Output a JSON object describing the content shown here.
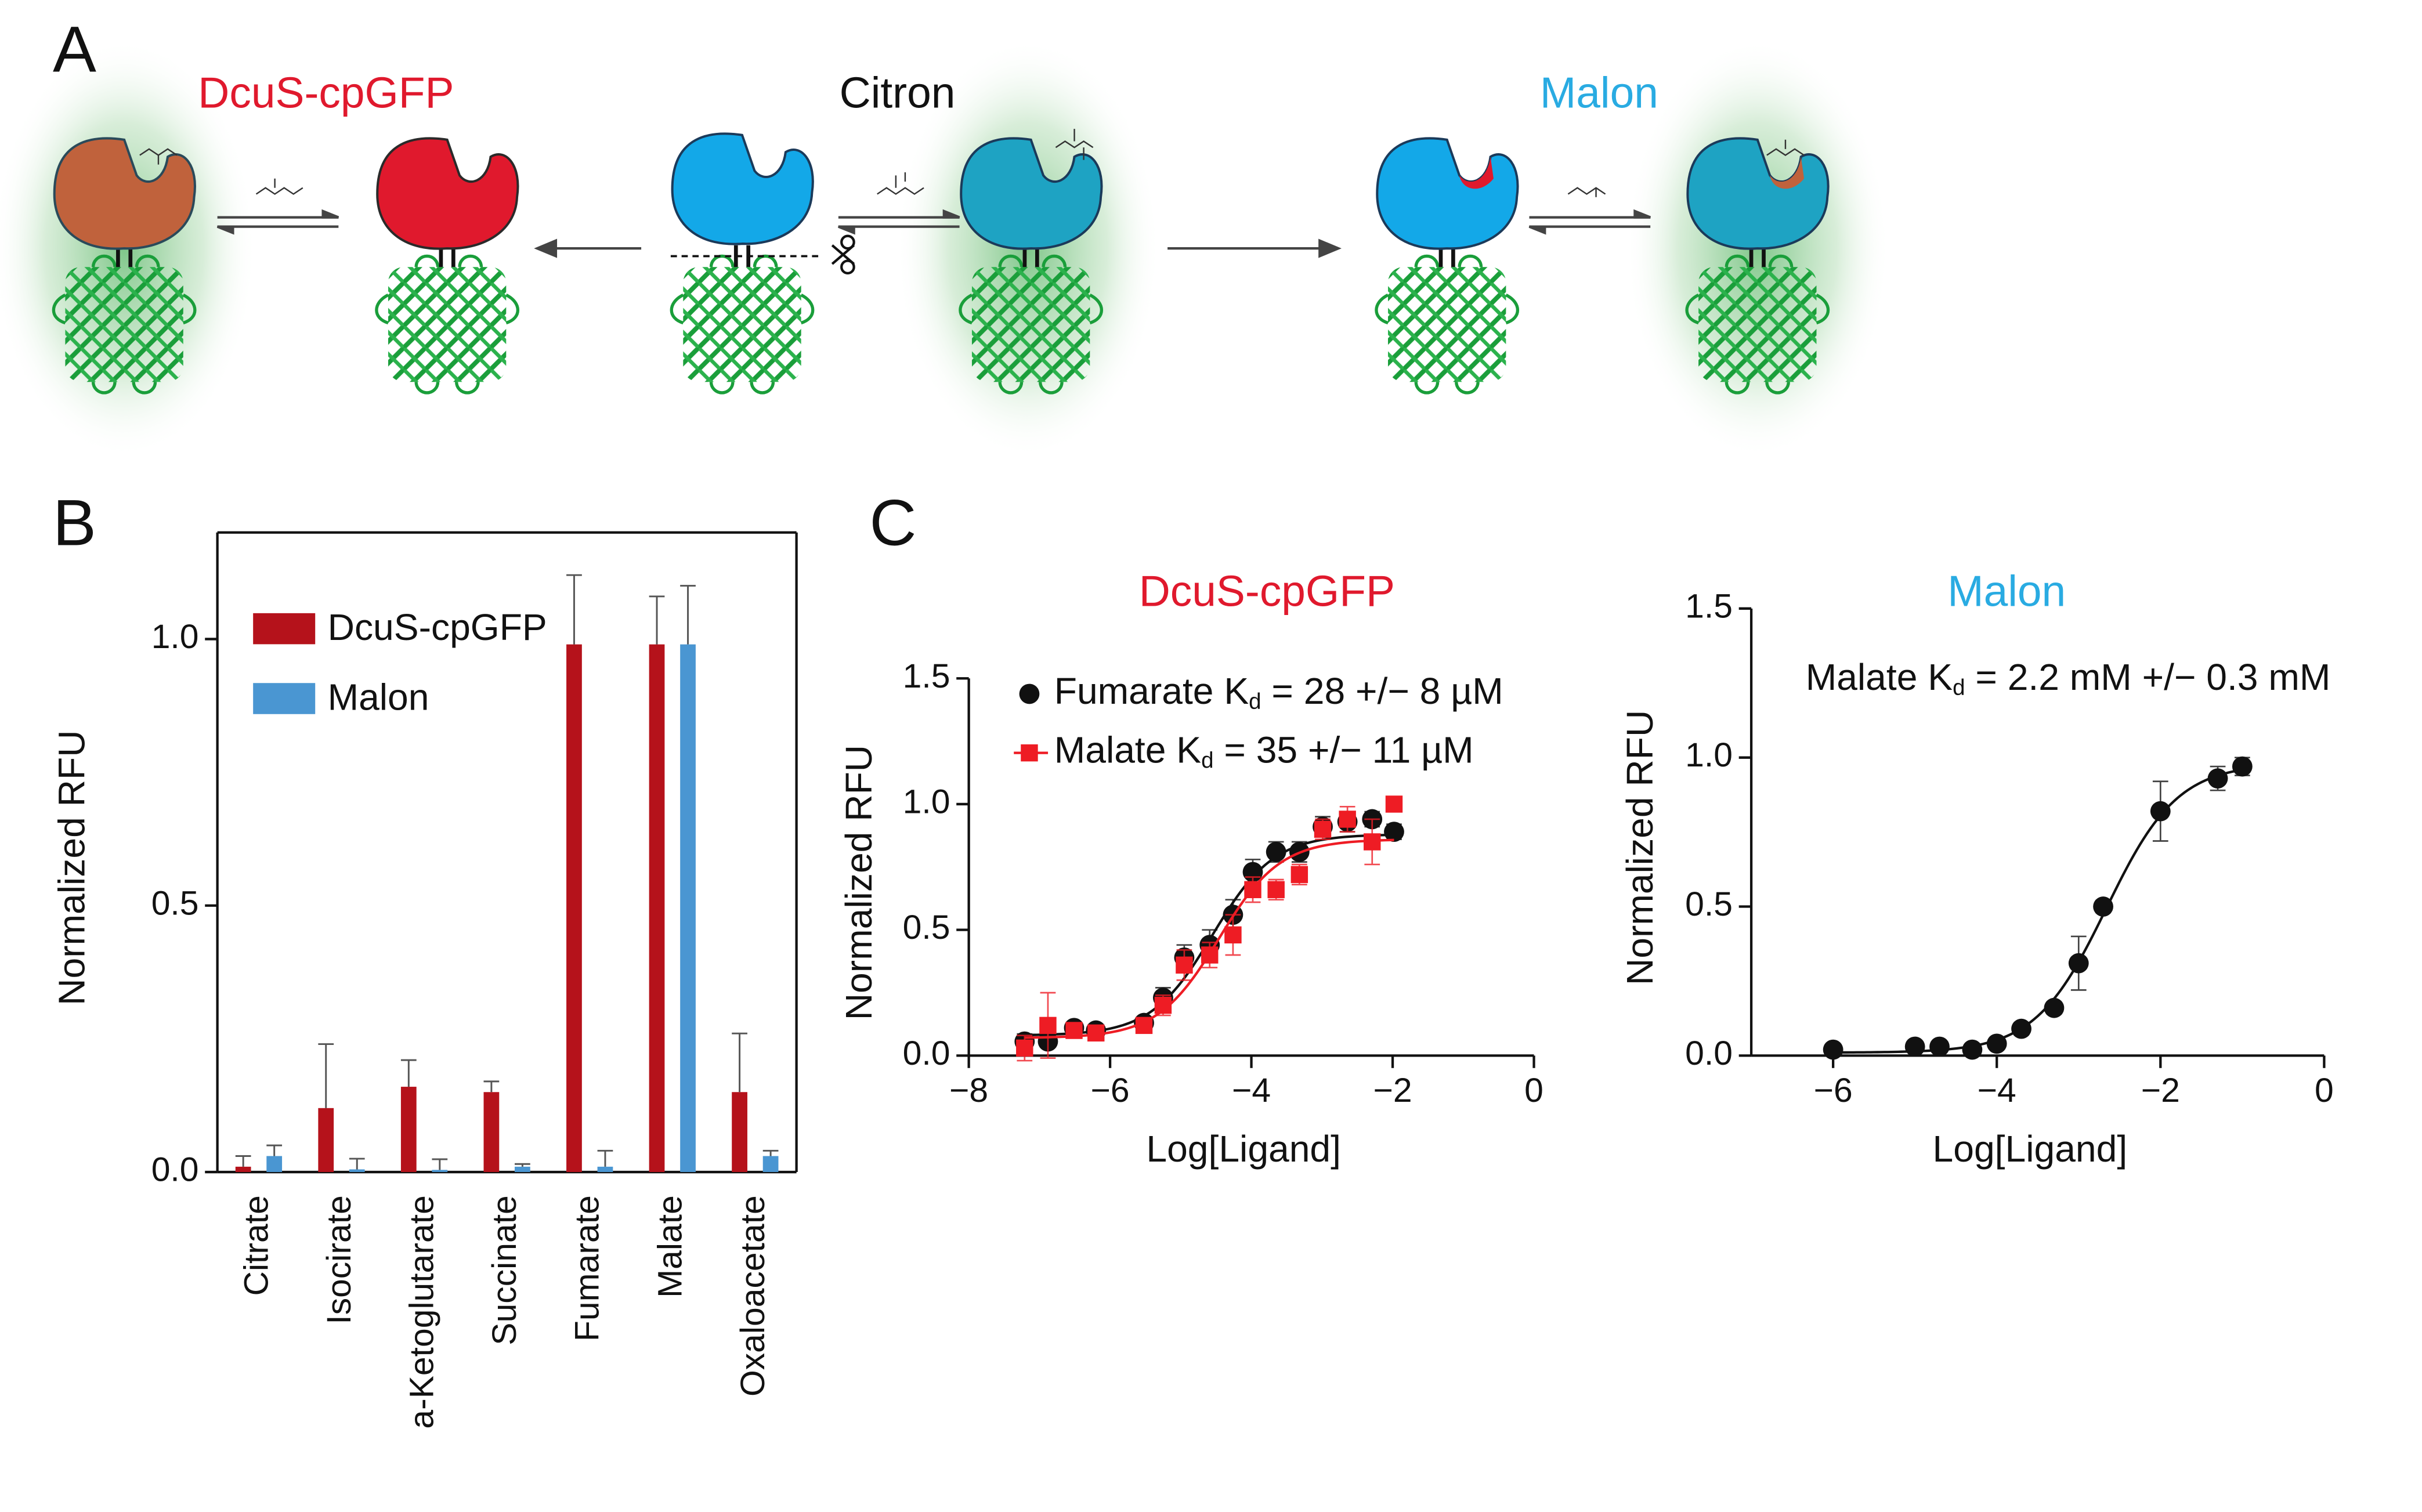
{
  "panel_labels": [
    "A",
    "B",
    "C"
  ],
  "diagram": {
    "labels": [
      {
        "text": "DcuS-cpGFP",
        "color": "#e0192d"
      },
      {
        "text": "Citron",
        "color": "#111111"
      },
      {
        "text": "Malon",
        "color": "#29abe2"
      }
    ]
  },
  "chart_data": [
    {
      "type": "bar",
      "ylabel": "Normalized  RFU",
      "categories": [
        "Citrate",
        "Isocirate",
        "a-Ketoglutarate",
        "Succinate",
        "Fumarate",
        "Malate",
        "Oxaloacetate"
      ],
      "series": [
        {
          "name": "DcuS-cpGFP",
          "color": "#b5121b",
          "values": [
            0.01,
            0.12,
            0.16,
            0.15,
            0.99,
            0.99,
            0.15
          ],
          "errors": [
            0.02,
            0.12,
            0.05,
            0.02,
            0.13,
            0.09,
            0.11
          ]
        },
        {
          "name": "Malon",
          "color": "#4a96d2",
          "values": [
            0.03,
            0.005,
            0.004,
            0.01,
            0.01,
            0.99,
            0.03
          ],
          "errors": [
            0.02,
            0.02,
            0.02,
            0.005,
            0.03,
            0.11,
            0.01
          ]
        }
      ],
      "ylim": [
        0,
        1.2
      ],
      "yticks": [
        {
          "value": 0,
          "label": "0.0"
        },
        0.5,
        {
          "value": 1,
          "label": "1.0"
        }
      ]
    },
    {
      "type": "scatter",
      "title": "DcuS-cpGFP",
      "title_color": "#e0192d",
      "xlabel": "Log[Ligand]",
      "ylabel": "Normalized  RFU",
      "xlim": [
        -8,
        0
      ],
      "xticks": [
        {
          "value": -8,
          "label": "−8"
        },
        {
          "value": -6,
          "label": "−6"
        },
        {
          "value": -4,
          "label": "−4"
        },
        {
          "value": -2,
          "label": "−2"
        },
        0
      ],
      "ylim": [
        0,
        1.5
      ],
      "yticks": [
        {
          "value": 0,
          "label": "0.0"
        },
        0.5,
        {
          "value": 1,
          "label": "1.0"
        },
        1.5
      ],
      "series": [
        {
          "name": "Fumarate Kd = 28 +/− 8 µM",
          "color": "#111111",
          "marker": "circle",
          "x": [
            -7.21,
            -6.88,
            -6.51,
            -6.2,
            -5.52,
            -5.25,
            -4.95,
            -4.59,
            -4.26,
            -3.98,
            -3.65,
            -3.32,
            -2.99,
            -2.64,
            -2.29,
            -1.98
          ],
          "values": [
            0.056,
            0.056,
            0.11,
            0.1,
            0.13,
            0.23,
            0.39,
            0.44,
            0.56,
            0.73,
            0.81,
            0.81,
            0.91,
            0.93,
            0.94,
            0.89
          ],
          "errors": [
            0.03,
            0.02,
            0.02,
            0.02,
            0.02,
            0.04,
            0.05,
            0.06,
            0.06,
            0.05,
            0.04,
            0.04,
            0.04,
            0.04,
            0.03,
            0.03
          ],
          "curve": {
            "bottom": 0.08,
            "top": 0.88,
            "log_ec50": -4.55,
            "hill": 1
          }
        },
        {
          "name": "Malate Kd = 35 +/− 11 µM",
          "color": "#ee1c24",
          "marker": "square",
          "x": [
            -7.21,
            -6.88,
            -6.51,
            -6.2,
            -5.52,
            -5.25,
            -4.95,
            -4.59,
            -4.26,
            -3.98,
            -3.65,
            -3.32,
            -2.99,
            -2.64,
            -2.29,
            -1.98
          ],
          "values": [
            0.03,
            0.12,
            0.1,
            0.09,
            0.12,
            0.2,
            0.36,
            0.4,
            0.48,
            0.66,
            0.66,
            0.72,
            0.9,
            0.94,
            0.85,
            1.0
          ],
          "errors": [
            0.05,
            0.13,
            0.03,
            0.03,
            0.03,
            0.04,
            0.06,
            0.05,
            0.08,
            0.05,
            0.04,
            0.04,
            0.04,
            0.05,
            0.09,
            0.02
          ],
          "curve": {
            "bottom": 0.07,
            "top": 0.86,
            "log_ec50": -4.46,
            "hill": 1
          }
        }
      ]
    },
    {
      "type": "scatter",
      "title": "Malon",
      "title_color": "#29abe2",
      "annotation": "Malate Kd = 2.2 mM +/− 0.3 mM",
      "xlabel": "Log[Ligand]",
      "ylabel": "Normalized  RFU",
      "xlim": [
        -7,
        0
      ],
      "xticks": [
        {
          "value": -6,
          "label": "−6"
        },
        {
          "value": -4,
          "label": "−4"
        },
        {
          "value": -2,
          "label": "−2"
        },
        0
      ],
      "ylim": [
        0,
        1.5
      ],
      "yticks": [
        {
          "value": 0,
          "label": "0.0"
        },
        0.5,
        {
          "value": 1,
          "label": "1.0"
        },
        1.5
      ],
      "series": [
        {
          "color": "#111111",
          "marker": "circle",
          "x": [
            -6,
            -5,
            -4.7,
            -4.3,
            -4,
            -3.7,
            -3.3,
            -3,
            -2.7,
            -2,
            -1.3,
            -1
          ],
          "values": [
            0.02,
            0.03,
            0.03,
            0.02,
            0.04,
            0.09,
            0.16,
            0.31,
            0.5,
            0.82,
            0.93,
            0.97
          ],
          "errors": [
            0.01,
            0.01,
            0.01,
            0.01,
            0.01,
            0.02,
            0.02,
            0.09,
            0.02,
            0.1,
            0.04,
            0.03
          ],
          "curve": {
            "bottom": 0.01,
            "top": 0.98,
            "log_ec50": -2.66,
            "hill": 1
          }
        }
      ]
    }
  ]
}
